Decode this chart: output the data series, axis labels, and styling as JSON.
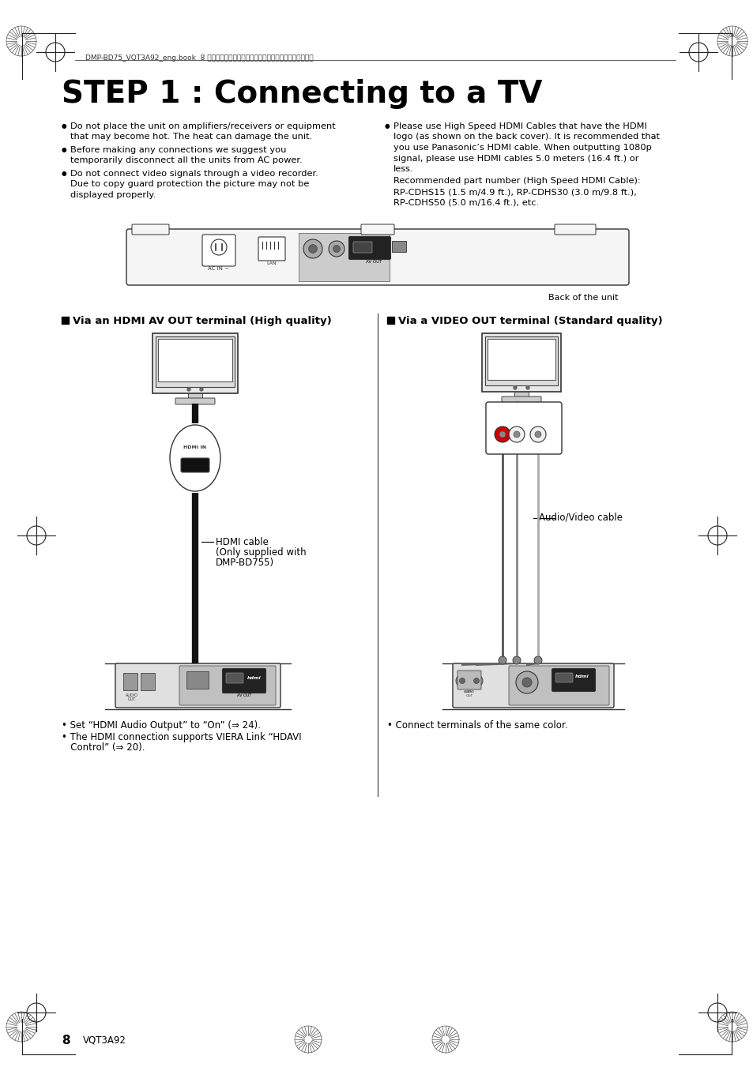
{
  "bg_color": "#ffffff",
  "page_width": 9.54,
  "page_height": 13.51,
  "header_text": "DMP-BD75_VQT3A92_eng.book  8 ページ　２０１１年２月８日　火曜日　午後３時１５分",
  "title": "STEP 1 : Connecting to a TV",
  "bullet_left_1a": "Do not place the unit on amplifiers/receivers or equipment",
  "bullet_left_1b": "that may become hot. The heat can damage the unit.",
  "bullet_left_2a": "Before making any connections we suggest you",
  "bullet_left_2b": "temporarily disconnect all the units from AC power.",
  "bullet_left_3a": "Do not connect video signals through a video recorder.",
  "bullet_left_3b": "Due to copy guard protection the picture may not be",
  "bullet_left_3c": "displayed properly.",
  "bullet_right_1a": "Please use High Speed HDMI Cables that have the HDMI",
  "bullet_right_1b": "logo (as shown on the back cover). It is recommended that",
  "bullet_right_1c": "you use Panasonic’s HDMI cable. When outputting 1080p",
  "bullet_right_1d": "signal, please use HDMI cables 5.0 meters (16.4 ft.) or",
  "bullet_right_1e": "less.",
  "bullet_right_2a": "Recommended part number (High Speed HDMI Cable):",
  "bullet_right_2b": "RP-CDHS15 (1.5 m/4.9 ft.), RP-CDHS30 (3.0 m/9.8 ft.),",
  "bullet_right_2c": "RP-CDHS50 (5.0 m/16.4 ft.), etc.",
  "back_label": "Back of the unit",
  "section_left_title": "Via an HDMI AV OUT terminal (High quality)",
  "section_right_title": "Via a VIDEO OUT terminal (Standard quality)",
  "hdmi_cable_line1": "HDMI cable",
  "hdmi_cable_line2": "(Only supplied with",
  "hdmi_cable_line3": "DMP-BD755)",
  "audio_video_cable_label": "Audio/Video cable",
  "note_left_1": "• Set “HDMI Audio Output” to “On” (⇒ 24).",
  "note_left_2": "• The HDMI connection supports VIERA Link “HDAVI",
  "note_left_3": "   Control” (⇒ 20).",
  "note_right_1": "• Connect terminals of the same color.",
  "footer_page": "8",
  "footer_code": "VQT3A92"
}
